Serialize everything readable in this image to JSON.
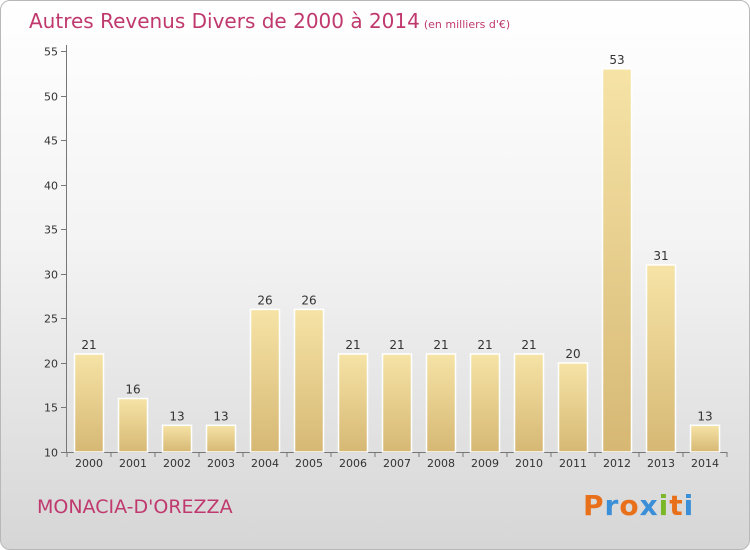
{
  "header": {
    "title": "Autres Revenus Divers de 2000 à 2014",
    "subtitle": "(en milliers d'€)"
  },
  "footer": {
    "commune": "MONACIA-D'OREZZA",
    "logo_letters": [
      "P",
      "r",
      "o",
      "x",
      "i",
      "t",
      "i"
    ],
    "logo_colors": [
      "#e8701a",
      "#3a8fd8",
      "#e8701a",
      "#3a8fd8",
      "#7ab828",
      "#e8701a",
      "#3a8fd8"
    ]
  },
  "colors": {
    "title": "#c0396e",
    "bar_light": "#f5e0a0",
    "bar_dark": "#d8bc78"
  },
  "chart_data": {
    "type": "bar",
    "title": "Autres Revenus Divers de 2000 à 2014",
    "xlabel": "",
    "ylabel": "",
    "categories": [
      "2000",
      "2001",
      "2002",
      "2003",
      "2004",
      "2005",
      "2006",
      "2007",
      "2008",
      "2009",
      "2010",
      "2011",
      "2012",
      "2013",
      "2014"
    ],
    "values": [
      21,
      16,
      13,
      13,
      26,
      26,
      21,
      21,
      21,
      21,
      21,
      20,
      53,
      31,
      13
    ],
    "ylim": [
      10,
      55
    ],
    "yticks": [
      10,
      15,
      20,
      25,
      30,
      35,
      40,
      45,
      50,
      55
    ],
    "grid": false,
    "legend": "none"
  }
}
